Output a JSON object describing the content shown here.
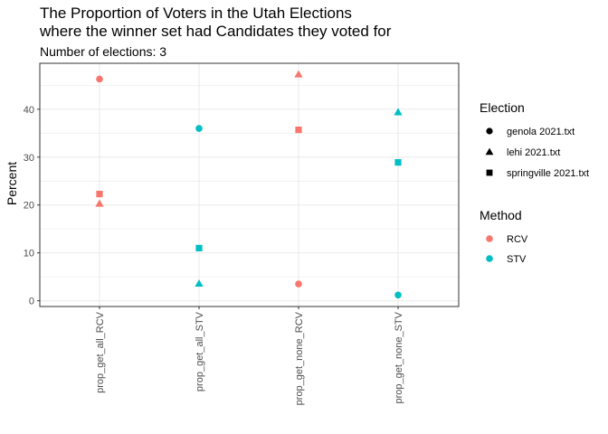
{
  "chart_data": {
    "type": "scatter",
    "title_lines": [
      "The Proportion of Voters in the Utah Elections",
      "where the winner set had Candidates they voted for"
    ],
    "subtitle": "Number of elections: 3",
    "xlabel": "",
    "ylabel": "Percent",
    "categories": [
      "prop_get_all_RCV",
      "prop_get_all_STV",
      "prop_get_none_RCV",
      "prop_get_none_STV"
    ],
    "ylim": [
      -1.2,
      49.6
    ],
    "yticks": [
      0,
      10,
      20,
      30,
      40
    ],
    "grid": true,
    "legend_position": "right",
    "legends": {
      "election": {
        "title": "Election",
        "items": [
          {
            "label": "genola 2021.txt",
            "shape": "circle"
          },
          {
            "label": "lehi 2021.txt",
            "shape": "triangle"
          },
          {
            "label": "springville 2021.txt",
            "shape": "square"
          }
        ]
      },
      "method": {
        "title": "Method",
        "items": [
          {
            "label": "RCV",
            "color": "#F8766D"
          },
          {
            "label": "STV",
            "color": "#00BFC4"
          }
        ]
      }
    },
    "points": [
      {
        "category": "prop_get_all_RCV",
        "election": "genola 2021.txt",
        "method": "RCV",
        "value": 46.3
      },
      {
        "category": "prop_get_all_RCV",
        "election": "springville 2021.txt",
        "method": "RCV",
        "value": 22.3
      },
      {
        "category": "prop_get_all_RCV",
        "election": "lehi 2021.txt",
        "method": "RCV",
        "value": 20.3
      },
      {
        "category": "prop_get_all_STV",
        "election": "genola 2021.txt",
        "method": "STV",
        "value": 36.0
      },
      {
        "category": "prop_get_all_STV",
        "election": "springville 2021.txt",
        "method": "STV",
        "value": 11.0
      },
      {
        "category": "prop_get_all_STV",
        "election": "lehi 2021.txt",
        "method": "STV",
        "value": 3.6
      },
      {
        "category": "prop_get_none_RCV",
        "election": "lehi 2021.txt",
        "method": "RCV",
        "value": 47.3
      },
      {
        "category": "prop_get_none_RCV",
        "election": "springville 2021.txt",
        "method": "RCV",
        "value": 35.7
      },
      {
        "category": "prop_get_none_RCV",
        "election": "genola 2021.txt",
        "method": "RCV",
        "value": 3.5
      },
      {
        "category": "prop_get_none_STV",
        "election": "lehi 2021.txt",
        "method": "STV",
        "value": 39.4
      },
      {
        "category": "prop_get_none_STV",
        "election": "springville 2021.txt",
        "method": "STV",
        "value": 28.9
      },
      {
        "category": "prop_get_none_STV",
        "election": "genola 2021.txt",
        "method": "STV",
        "value": 1.2
      }
    ]
  }
}
